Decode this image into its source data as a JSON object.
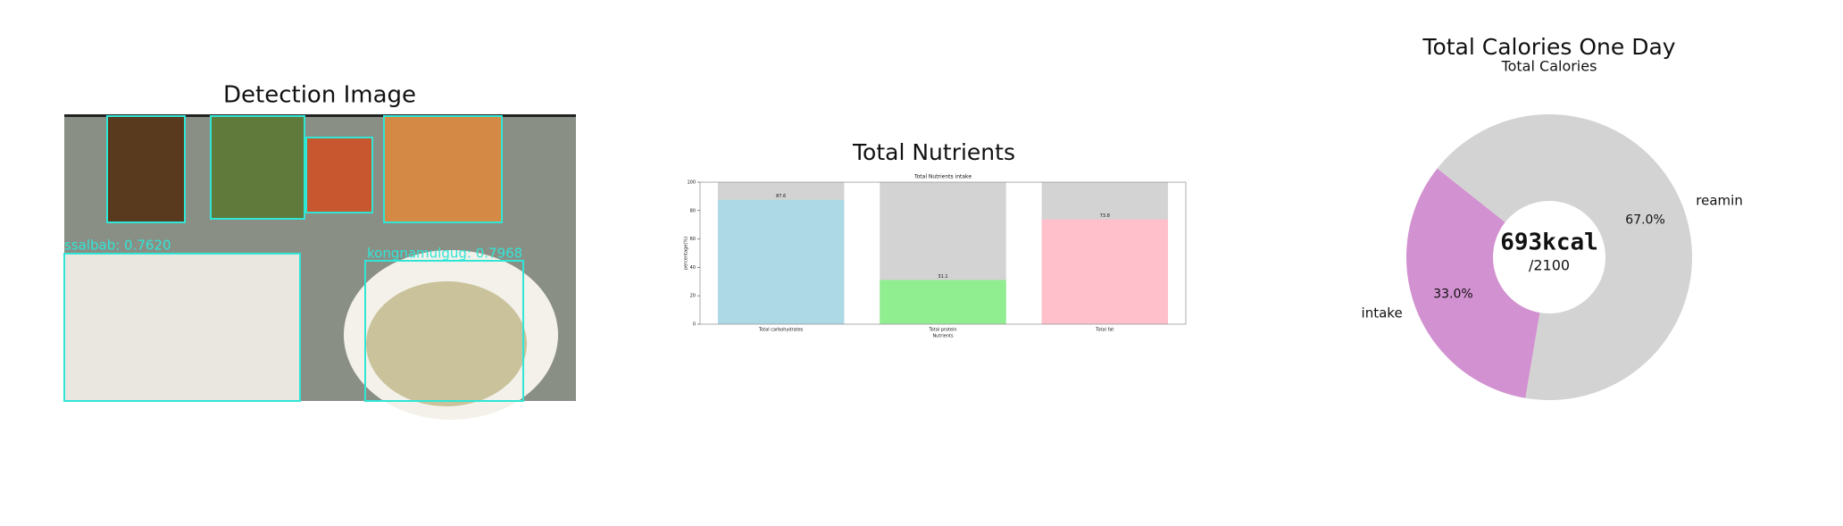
{
  "detection": {
    "title": "Detection Image",
    "labels": [
      "ssalbab: 0.7620",
      "kongnamulgug: 0.7968"
    ]
  },
  "chart_data": [
    {
      "type": "bar",
      "title": "Total Nutrients",
      "subtitle": "Total Nutrients intake",
      "x_label": "Nutrients",
      "y_label": "percentage(%)",
      "categories": [
        "Total carbohydrates",
        "Total protein",
        "Total fat"
      ],
      "values": [
        87.6,
        31.1,
        73.8
      ],
      "colors": [
        "#add8e6",
        "#90ee90",
        "#ffc0cb"
      ],
      "remainder_color": "#d3d3d3",
      "ylim": [
        0,
        100
      ],
      "yticks": [
        0,
        20,
        40,
        60,
        80,
        100
      ]
    },
    {
      "type": "pie",
      "title": "Total Calories One Day",
      "subtitle": "Total Calories",
      "categories": [
        "intake",
        "reamin"
      ],
      "values": [
        33.0,
        67.0
      ],
      "value_labels": [
        "33.0%",
        "67.0%"
      ],
      "colors": [
        "#d291d0",
        "#d3d3d3"
      ],
      "startangle": 141.6,
      "center_text": "693kcal",
      "center_subtext": "/2100"
    }
  ]
}
